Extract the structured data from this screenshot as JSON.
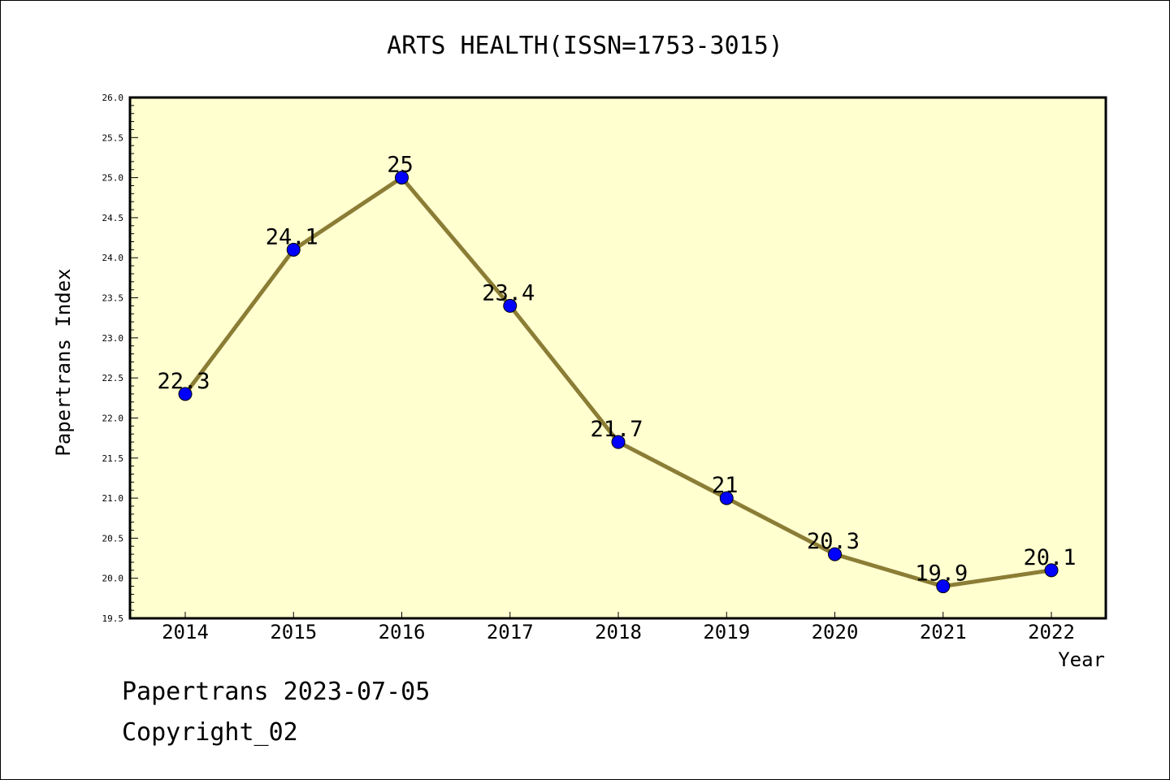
{
  "chart_data": {
    "type": "line",
    "title": "ARTS HEALTH(ISSN=1753-3015)",
    "xlabel": "Year",
    "ylabel": "Papertrans Index",
    "categories": [
      "2014",
      "2015",
      "2016",
      "2017",
      "2018",
      "2019",
      "2020",
      "2021",
      "2022"
    ],
    "values": [
      22.3,
      24.1,
      25,
      23.4,
      21.7,
      21,
      20.3,
      19.9,
      20.1
    ],
    "data_labels": [
      "22.3",
      "24.1",
      "25",
      "23.4",
      "21.7",
      "21",
      "20.3",
      "19.9",
      "20.1"
    ],
    "ylim": [
      19.5,
      26.0
    ],
    "yticks": [
      "19.5",
      "20.0",
      "20.5",
      "21.0",
      "21.5",
      "22.0",
      "22.5",
      "23.0",
      "23.5",
      "24.0",
      "24.5",
      "25.0",
      "25.5",
      "26.0"
    ],
    "grid": false,
    "legend": "none",
    "colors": {
      "plot_background": "#ffffd0",
      "line": "#8b7d35",
      "marker": "#0000ff"
    }
  },
  "footer": {
    "date_text": "Papertrans 2023-07-05",
    "copyright_text": "Copyright_02"
  }
}
